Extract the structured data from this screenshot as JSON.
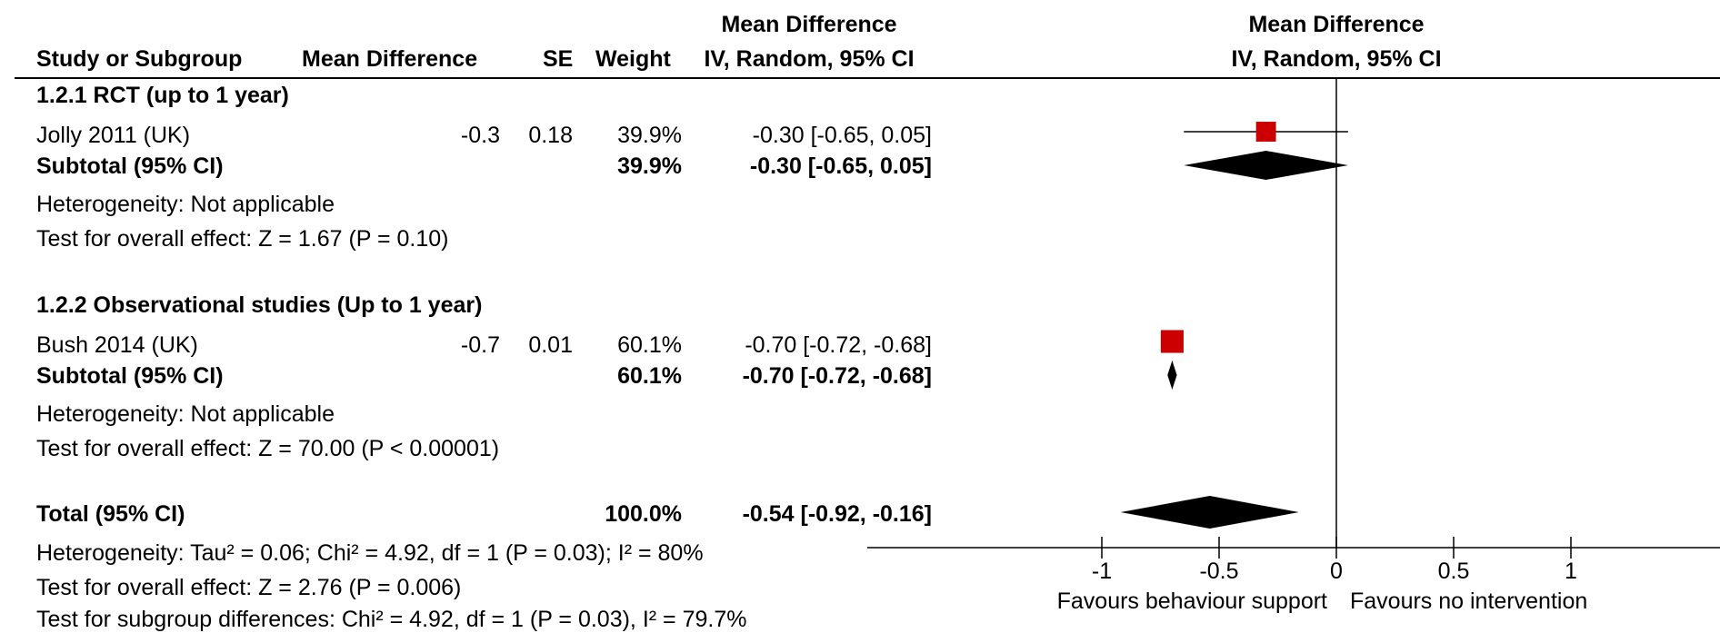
{
  "header": {
    "col_study": "Study or Subgroup",
    "col_md": "Mean Difference",
    "col_se": "SE",
    "col_weight": "Weight",
    "col_ci_title1": "Mean Difference",
    "col_ci_title2": "IV, Random, 95% CI",
    "plot_title1": "Mean Difference",
    "plot_title2": "IV, Random, 95% CI"
  },
  "groups": [
    {
      "title": "1.2.1 RCT (up to 1 year)",
      "study": {
        "name": "Jolly 2011 (UK)",
        "md": "-0.3",
        "se": "0.18",
        "weight": "39.9%",
        "ci": "-0.30 [-0.65, 0.05]"
      },
      "subtotal": {
        "label": "Subtotal (95% CI)",
        "weight": "39.9%",
        "ci": "-0.30 [-0.65, 0.05]"
      },
      "heterogeneity": "Heterogeneity: Not applicable",
      "overall": "Test for overall effect: Z = 1.67 (P = 0.10)"
    },
    {
      "title": "1.2.2 Observational studies (Up to 1 year)",
      "study": {
        "name": "Bush 2014 (UK)",
        "md": "-0.7",
        "se": "0.01",
        "weight": "60.1%",
        "ci": "-0.70 [-0.72, -0.68]"
      },
      "subtotal": {
        "label": "Subtotal (95% CI)",
        "weight": "60.1%",
        "ci": "-0.70 [-0.72, -0.68]"
      },
      "heterogeneity": "Heterogeneity: Not applicable",
      "overall": "Test for overall effect: Z = 70.00 (P < 0.00001)"
    }
  ],
  "total": {
    "label": "Total (95% CI)",
    "weight": "100.0%",
    "ci": "-0.54 [-0.92, -0.16]",
    "heterogeneity": "Heterogeneity: Tau² = 0.06; Chi² = 4.92, df = 1 (P = 0.03); I² = 80%",
    "overall": "Test for overall effect: Z = 2.76 (P = 0.006)",
    "subgroup": "Test for subgroup differences: Chi² = 4.92, df = 1 (P = 0.03), I² = 79.7%"
  },
  "favours_left": "Favours behaviour support",
  "favours_right": "Favours no intervention",
  "colors": {
    "study_marker": "#cc0000",
    "diamond": "#000000"
  },
  "chart_data": {
    "type": "scatter",
    "subtype": "forest",
    "xlim": [
      -2,
      2
    ],
    "xticks": [
      -1,
      -0.5,
      0,
      0.5,
      1
    ],
    "tick_labels": [
      "-1",
      "-0.5",
      "0",
      "0.5",
      "1"
    ],
    "studies": [
      {
        "name": "Jolly 2011 (UK)",
        "md": -0.3,
        "lo": -0.65,
        "hi": 0.05,
        "weight": 39.9
      },
      {
        "name": "Bush 2014 (UK)",
        "md": -0.7,
        "lo": -0.72,
        "hi": -0.68,
        "weight": 60.1
      }
    ],
    "subtotals": [
      {
        "label": "Subtotal (95% CI)",
        "md": -0.3,
        "lo": -0.65,
        "hi": 0.05
      },
      {
        "label": "Subtotal (95% CI)",
        "md": -0.7,
        "lo": -0.72,
        "hi": -0.68
      }
    ],
    "total": {
      "label": "Total (95% CI)",
      "md": -0.54,
      "lo": -0.92,
      "hi": -0.16
    }
  }
}
